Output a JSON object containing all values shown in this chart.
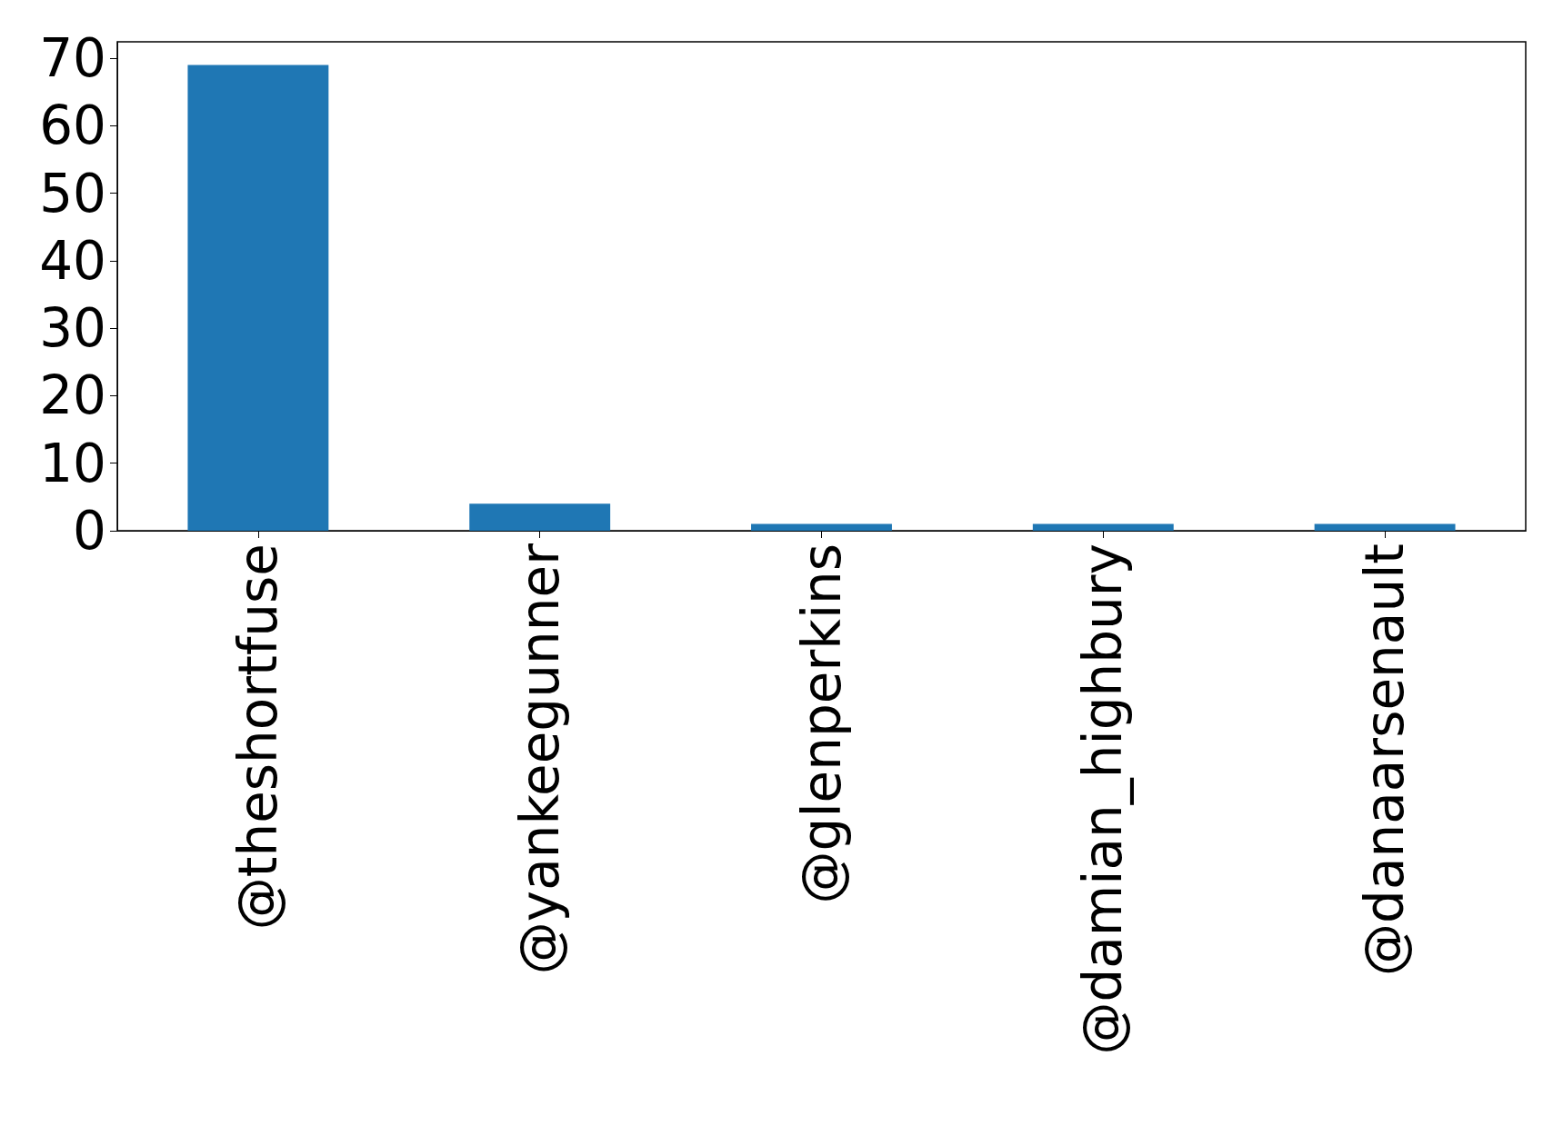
{
  "chart_data": {
    "type": "bar",
    "categories": [
      "@theshortfuse",
      "@yankeegunner",
      "@glenperkins",
      "@damian_highbury",
      "@danaarsenault"
    ],
    "values": [
      69,
      4,
      1,
      1,
      1
    ],
    "color": "#1f77b4",
    "ylim": [
      0,
      72.45
    ],
    "yticks": [
      0,
      10,
      20,
      30,
      40,
      50,
      60,
      70
    ],
    "grid": false
  }
}
